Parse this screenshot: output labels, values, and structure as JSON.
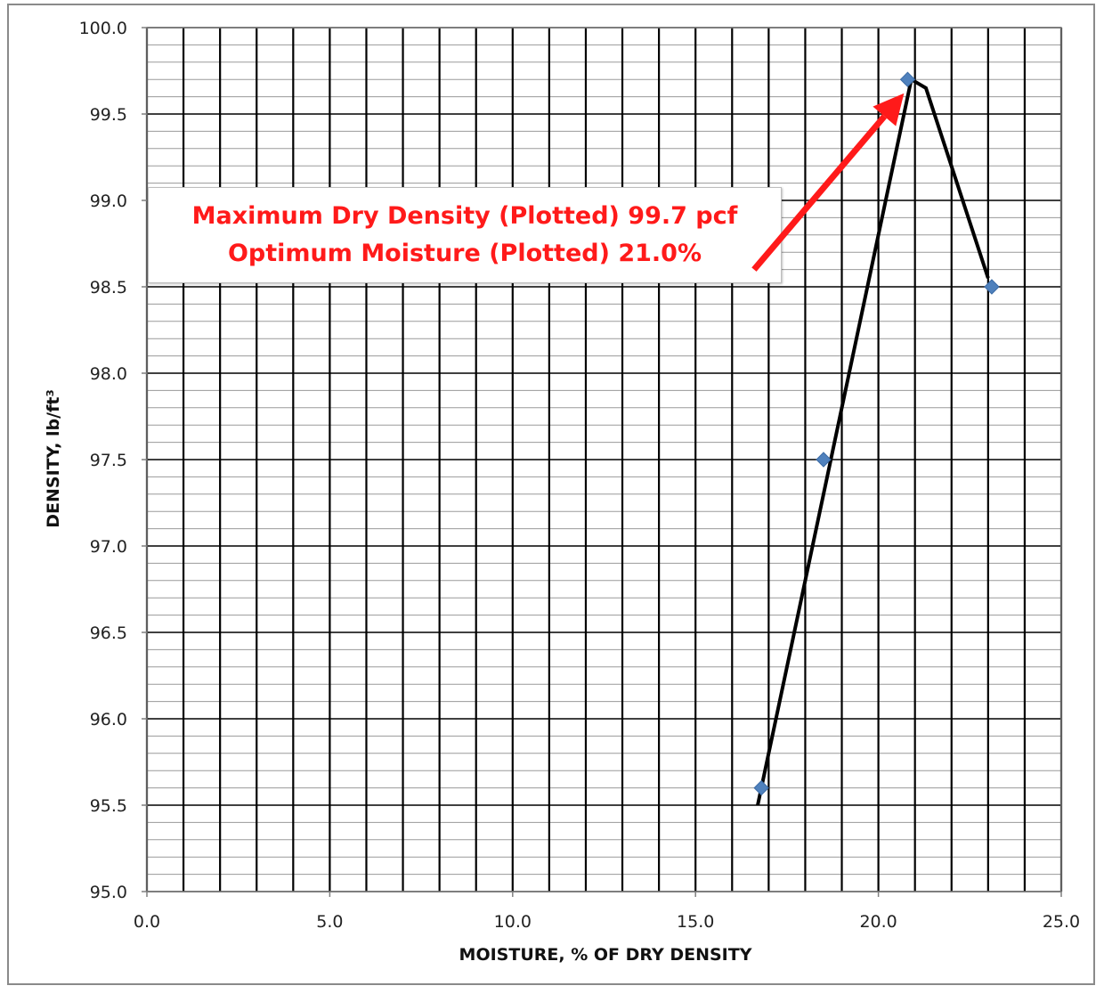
{
  "colors": {
    "grid_major": "#000000",
    "grid_minor": "#9a9a9a",
    "marker": "#4f81bd",
    "fit_line": "#000000",
    "annotation_text": "#ff1a1a",
    "arrow": "#ff1a1a"
  },
  "chart_data": {
    "type": "scatter",
    "title": "",
    "xlabel": "MOISTURE, % OF DRY DENSITY",
    "ylabel": "DENSITY, lb/ft³",
    "xlim": [
      0,
      25
    ],
    "ylim": [
      95,
      100
    ],
    "x_major_step": 5,
    "x_gridline_step": 1,
    "y_major_step": 0.5,
    "y_gridline_step": 0.1,
    "x_tick_labels": [
      "0.0",
      "5.0",
      "10.0",
      "15.0",
      "20.0",
      "25.0"
    ],
    "y_tick_labels": [
      "95.0",
      "95.5",
      "96.0",
      "96.5",
      "97.0",
      "97.5",
      "98.0",
      "98.5",
      "99.0",
      "99.5",
      "100.0"
    ],
    "grid": true,
    "legend": "none",
    "series": [
      {
        "type": "scatter",
        "marker": "diamond",
        "x": [
          16.8,
          18.5,
          20.8,
          23.1
        ],
        "y": [
          95.6,
          97.5,
          99.7,
          98.5
        ]
      },
      {
        "type": "line",
        "x": [
          16.7,
          20.9,
          21.3,
          23.0
        ],
        "y": [
          95.5,
          99.7,
          99.65,
          98.55
        ]
      }
    ],
    "annotation": {
      "lines": [
        "Maximum Dry Density (Plotted) 99.7 pcf",
        "Optimum Moisture (Plotted) 21.0%"
      ],
      "arrow_from": [
        16.6,
        98.6
      ],
      "arrow_to": [
        20.7,
        99.62
      ]
    }
  }
}
